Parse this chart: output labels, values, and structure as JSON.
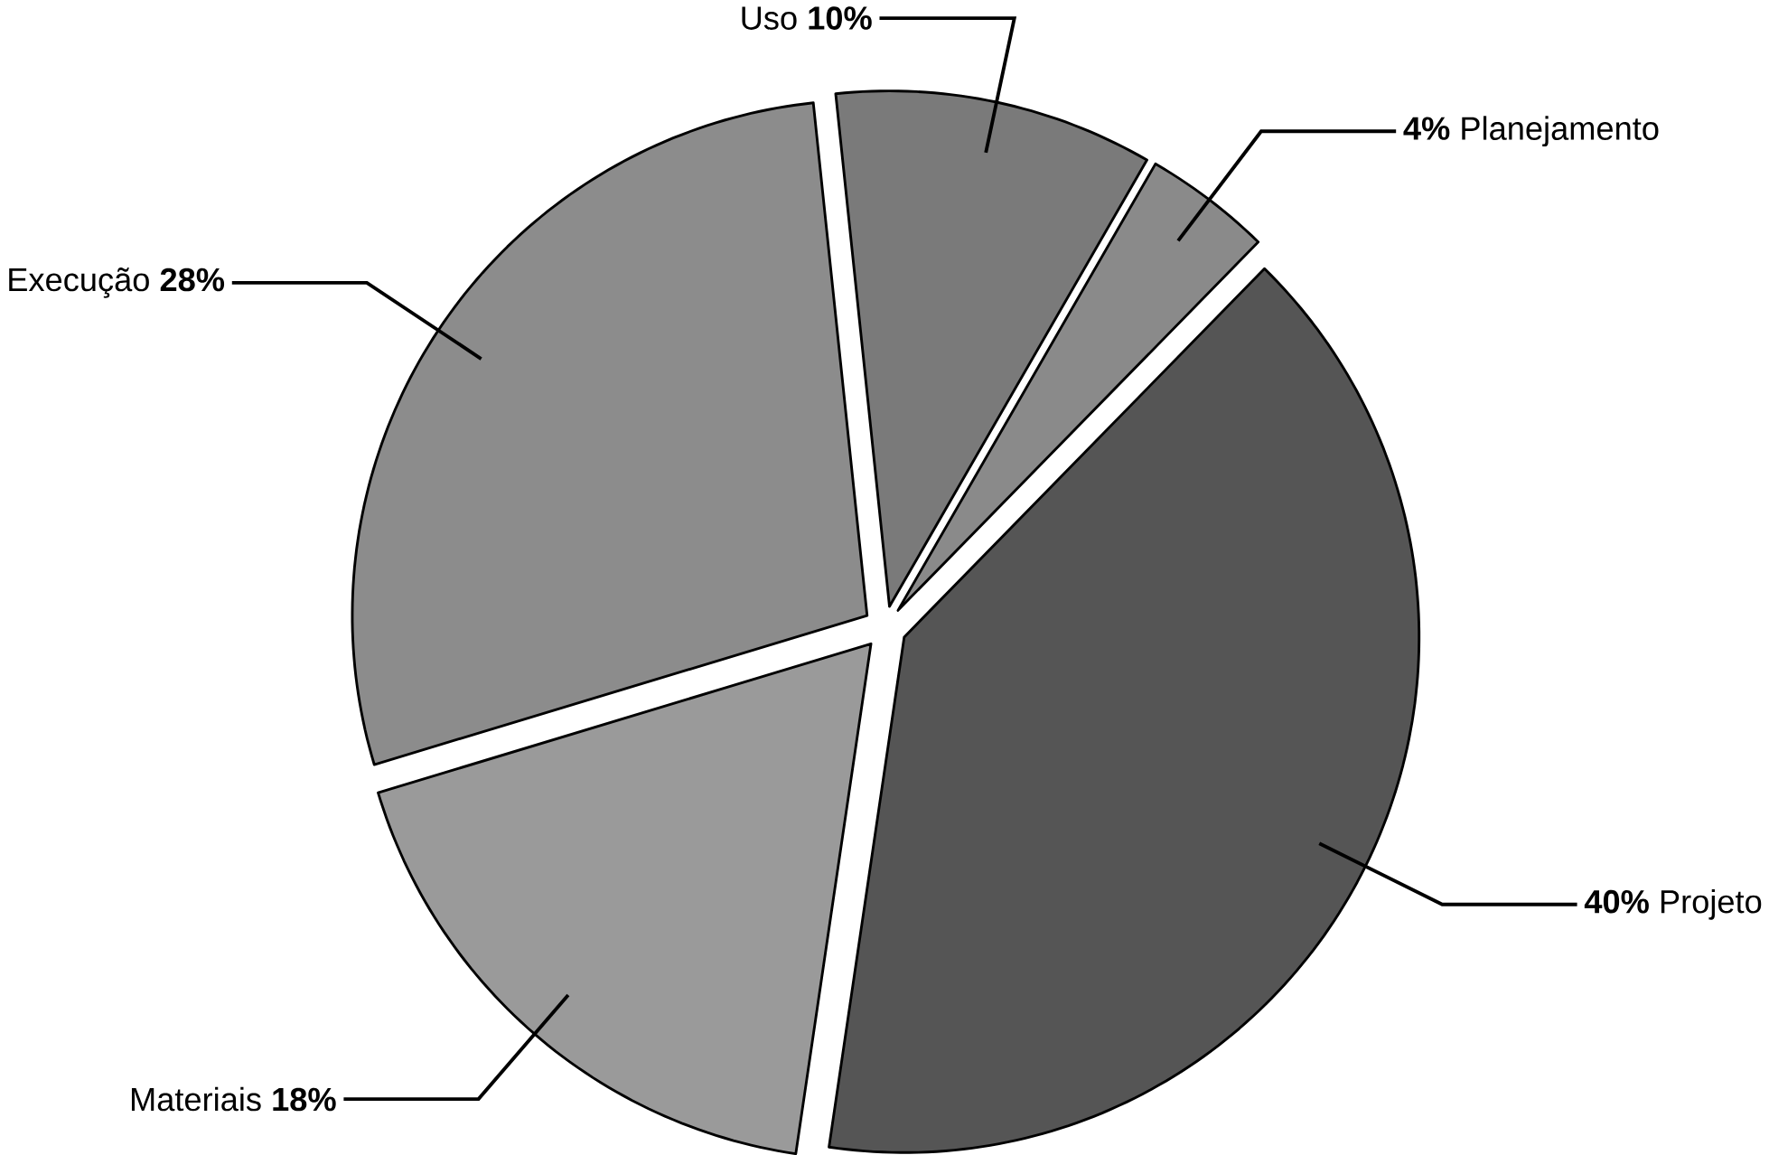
{
  "chart_data": {
    "type": "pie",
    "categories": [
      "Planejamento",
      "Projeto",
      "Materiais",
      "Execução",
      "Uso"
    ],
    "values": [
      4,
      40,
      18,
      28,
      10
    ],
    "value_labels": [
      "4%",
      "40%",
      "18%",
      "28%",
      "10%"
    ],
    "colors": [
      "#8a8a8a",
      "#555555",
      "#9a9a9a",
      "#8c8c8c",
      "#7a7a7a"
    ]
  }
}
